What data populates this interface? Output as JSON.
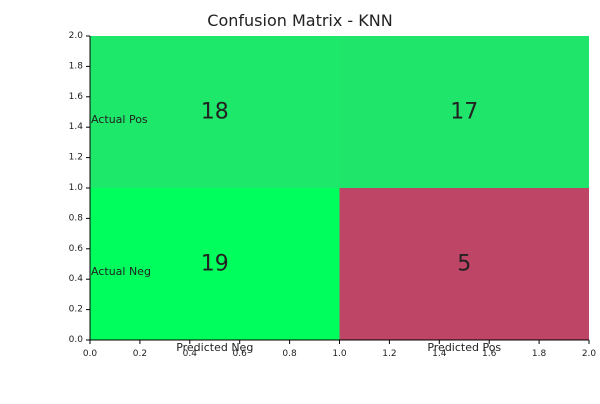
{
  "chart_data": {
    "type": "heatmap",
    "title": "Confusion Matrix - KNN",
    "xlim": [
      0,
      2
    ],
    "ylim": [
      0,
      2
    ],
    "xticks": [
      "0.0",
      "0.2",
      "0.4",
      "0.6",
      "0.8",
      "1.0",
      "1.2",
      "1.4",
      "1.6",
      "1.8",
      "2.0"
    ],
    "yticks": [
      "0.0",
      "0.2",
      "0.4",
      "0.6",
      "0.8",
      "1.0",
      "1.2",
      "1.4",
      "1.6",
      "1.8",
      "2.0"
    ],
    "cells": [
      {
        "x0": 0,
        "x1": 1,
        "y0": 1,
        "y1": 2,
        "value": 18,
        "color": "#1ee869"
      },
      {
        "x0": 1,
        "x1": 2,
        "y0": 1,
        "y1": 2,
        "value": 17,
        "color": "#1fe66b"
      },
      {
        "x0": 0,
        "x1": 1,
        "y0": 0,
        "y1": 1,
        "value": 19,
        "color": "#00ff5c"
      },
      {
        "x0": 1,
        "x1": 2,
        "y0": 0,
        "y1": 1,
        "value": 5,
        "color": "#bf4566"
      }
    ],
    "annotations": [
      {
        "text": "Actual Pos",
        "x": 0.0,
        "y": 1.45,
        "anchor": "start"
      },
      {
        "text": "Actual Neg",
        "x": 0.0,
        "y": 0.45,
        "anchor": "start"
      },
      {
        "text": "Predicted Neg",
        "x": 0.5,
        "y": -0.05,
        "anchor": "middle"
      },
      {
        "text": "Predicted Pos",
        "x": 1.5,
        "y": -0.05,
        "anchor": "middle"
      }
    ],
    "grid": false
  }
}
